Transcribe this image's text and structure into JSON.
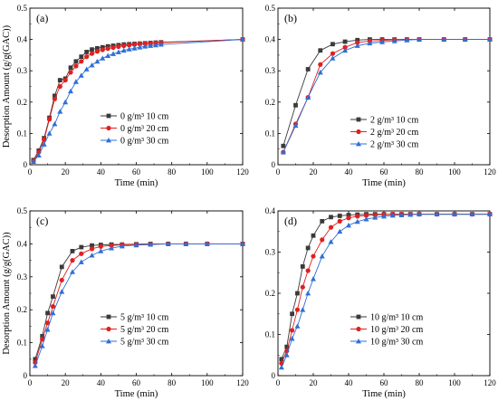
{
  "figure": {
    "colors": {
      "s10": "#3a3a3a",
      "s20": "#e02020",
      "s30": "#2f6fd6",
      "axis": "#000000"
    }
  },
  "chart_data": [
    {
      "type": "line",
      "panel_label": "(a)",
      "xlabel": "Time (min)",
      "ylabel": "Desorption Amount (g/g(GAC))",
      "xlim": [
        0,
        120
      ],
      "ylim": [
        0,
        0.5
      ],
      "xticks": [
        0,
        20,
        40,
        60,
        80,
        100,
        120
      ],
      "yticks": [
        0,
        0.1,
        0.2,
        0.3,
        0.4,
        0.5
      ],
      "ytick_labels": [
        "0",
        "0.1",
        "0.2",
        "0.3",
        "0.4",
        "0.5"
      ],
      "legend_position": "center-right",
      "series": [
        {
          "name": "0 g/m³ 10 cm",
          "marker": "square",
          "color": "#3a3a3a",
          "x": [
            2,
            5,
            8,
            11,
            14,
            17,
            20,
            23,
            26,
            29,
            32,
            35,
            38,
            41,
            44,
            47,
            50,
            53,
            56,
            59,
            62,
            65,
            68,
            71,
            74,
            120
          ],
          "y": [
            0.015,
            0.045,
            0.085,
            0.15,
            0.22,
            0.27,
            0.275,
            0.31,
            0.33,
            0.345,
            0.36,
            0.368,
            0.372,
            0.375,
            0.378,
            0.38,
            0.382,
            0.384,
            0.385,
            0.386,
            0.387,
            0.388,
            0.389,
            0.39,
            0.391,
            0.4
          ]
        },
        {
          "name": "0 g/m³ 20 cm",
          "marker": "circle",
          "color": "#e02020",
          "x": [
            2,
            5,
            8,
            11,
            14,
            17,
            20,
            23,
            26,
            29,
            32,
            35,
            38,
            41,
            44,
            47,
            50,
            53,
            56,
            59,
            62,
            65,
            68,
            71,
            74,
            120
          ],
          "y": [
            0.012,
            0.04,
            0.08,
            0.145,
            0.21,
            0.25,
            0.27,
            0.295,
            0.315,
            0.33,
            0.345,
            0.355,
            0.362,
            0.367,
            0.371,
            0.374,
            0.377,
            0.38,
            0.382,
            0.384,
            0.386,
            0.387,
            0.388,
            0.389,
            0.39,
            0.4
          ]
        },
        {
          "name": "0 g/m³ 30 cm",
          "marker": "triangle",
          "color": "#2f6fd6",
          "x": [
            2,
            5,
            8,
            11,
            14,
            17,
            20,
            23,
            26,
            29,
            32,
            35,
            38,
            41,
            44,
            47,
            50,
            53,
            56,
            59,
            62,
            65,
            68,
            71,
            74,
            120
          ],
          "y": [
            0.01,
            0.03,
            0.065,
            0.1,
            0.13,
            0.17,
            0.2,
            0.235,
            0.265,
            0.285,
            0.305,
            0.318,
            0.33,
            0.34,
            0.348,
            0.354,
            0.36,
            0.365,
            0.369,
            0.372,
            0.375,
            0.378,
            0.38,
            0.382,
            0.384,
            0.4
          ]
        }
      ]
    },
    {
      "type": "line",
      "panel_label": "(b)",
      "xlabel": "Time (min)",
      "ylabel": "",
      "xlim": [
        0,
        120
      ],
      "ylim": [
        0,
        0.5
      ],
      "xticks": [
        0,
        20,
        40,
        60,
        80,
        100,
        120
      ],
      "yticks": [
        0,
        0.1,
        0.2,
        0.3,
        0.4,
        0.5
      ],
      "ytick_labels": [
        "0",
        "0.1",
        "0.2",
        "0.3",
        "0.4",
        "0.5"
      ],
      "legend_position": "center-right",
      "series": [
        {
          "name": "2 g/m³ 10 cm",
          "marker": "square",
          "color": "#3a3a3a",
          "x": [
            3,
            10,
            17,
            24,
            31,
            38,
            45,
            52,
            59,
            66,
            73,
            80,
            94,
            106,
            120
          ],
          "y": [
            0.06,
            0.19,
            0.305,
            0.365,
            0.385,
            0.393,
            0.398,
            0.4,
            0.4,
            0.4,
            0.4,
            0.4,
            0.4,
            0.4,
            0.4
          ]
        },
        {
          "name": "2 g/m³ 20 cm",
          "marker": "circle",
          "color": "#e02020",
          "x": [
            3,
            10,
            17,
            24,
            31,
            38,
            45,
            52,
            59,
            66,
            73,
            80,
            94,
            106,
            120
          ],
          "y": [
            0.04,
            0.13,
            0.215,
            0.32,
            0.355,
            0.375,
            0.39,
            0.395,
            0.397,
            0.399,
            0.4,
            0.4,
            0.4,
            0.4,
            0.4
          ]
        },
        {
          "name": "2 g/m³ 30 cm",
          "marker": "triangle",
          "color": "#2f6fd6",
          "x": [
            3,
            10,
            17,
            24,
            31,
            38,
            45,
            52,
            59,
            66,
            73,
            80,
            94,
            106,
            120
          ],
          "y": [
            0.04,
            0.125,
            0.215,
            0.295,
            0.34,
            0.365,
            0.38,
            0.388,
            0.392,
            0.395,
            0.398,
            0.4,
            0.4,
            0.4,
            0.4
          ]
        }
      ]
    },
    {
      "type": "line",
      "panel_label": "(c)",
      "xlabel": "Time (min)",
      "ylabel": "Desorption Amount (g/g(GAC))",
      "xlim": [
        0,
        120
      ],
      "ylim": [
        0,
        0.5
      ],
      "xticks": [
        0,
        20,
        40,
        60,
        80,
        100,
        120
      ],
      "yticks": [
        0,
        0.1,
        0.2,
        0.3,
        0.4,
        0.5
      ],
      "ytick_labels": [
        "0",
        "0.1",
        "0.2",
        "0.3",
        "0.4",
        "0.5"
      ],
      "legend_position": "center-right",
      "series": [
        {
          "name": "5 g/m³ 10 cm",
          "marker": "square",
          "color": "#3a3a3a",
          "x": [
            3,
            7,
            10,
            13,
            18,
            24,
            29,
            35,
            40,
            46,
            52,
            60,
            68,
            78,
            88,
            100,
            120
          ],
          "y": [
            0.05,
            0.12,
            0.19,
            0.24,
            0.33,
            0.378,
            0.39,
            0.395,
            0.397,
            0.398,
            0.398,
            0.399,
            0.4,
            0.4,
            0.4,
            0.4,
            0.4
          ]
        },
        {
          "name": "5 g/m³ 20 cm",
          "marker": "circle",
          "color": "#e02020",
          "x": [
            3,
            7,
            10,
            13,
            18,
            24,
            29,
            35,
            40,
            46,
            52,
            60,
            68,
            78,
            88,
            100,
            120
          ],
          "y": [
            0.04,
            0.11,
            0.16,
            0.21,
            0.29,
            0.35,
            0.37,
            0.385,
            0.392,
            0.395,
            0.397,
            0.398,
            0.399,
            0.4,
            0.4,
            0.4,
            0.4
          ]
        },
        {
          "name": "5 g/m³ 30 cm",
          "marker": "triangle",
          "color": "#2f6fd6",
          "x": [
            3,
            7,
            10,
            13,
            18,
            24,
            29,
            35,
            40,
            46,
            52,
            60,
            68,
            78,
            88,
            100,
            120
          ],
          "y": [
            0.03,
            0.09,
            0.14,
            0.19,
            0.255,
            0.315,
            0.345,
            0.365,
            0.378,
            0.387,
            0.393,
            0.396,
            0.398,
            0.4,
            0.4,
            0.4,
            0.4
          ]
        }
      ]
    },
    {
      "type": "line",
      "panel_label": "(d)",
      "xlabel": "Time (min)",
      "ylabel": "",
      "xlim": [
        0,
        120
      ],
      "ylim": [
        0,
        0.4
      ],
      "xticks": [
        0,
        20,
        40,
        60,
        80,
        100,
        120
      ],
      "yticks": [
        0,
        0.1,
        0.2,
        0.3,
        0.4
      ],
      "ytick_labels": [
        "0",
        "0.1",
        "0.2",
        "0.3",
        "0.4"
      ],
      "legend_position": "center-right",
      "series": [
        {
          "name": "10 g/m³ 10 cm",
          "marker": "square",
          "color": "#3a3a3a",
          "x": [
            2,
            5,
            8,
            11,
            14,
            17,
            20,
            25,
            30,
            35,
            40,
            45,
            50,
            55,
            60,
            65,
            70,
            75,
            80,
            90,
            100,
            110,
            120
          ],
          "y": [
            0.04,
            0.07,
            0.15,
            0.2,
            0.265,
            0.31,
            0.34,
            0.375,
            0.385,
            0.388,
            0.39,
            0.391,
            0.392,
            0.392,
            0.392,
            0.392,
            0.392,
            0.392,
            0.392,
            0.392,
            0.392,
            0.392,
            0.392
          ]
        },
        {
          "name": "10 g/m³ 20 cm",
          "marker": "circle",
          "color": "#e02020",
          "x": [
            2,
            5,
            8,
            11,
            14,
            17,
            20,
            25,
            30,
            35,
            40,
            45,
            50,
            55,
            60,
            65,
            70,
            75,
            80,
            90,
            100,
            110,
            120
          ],
          "y": [
            0.03,
            0.06,
            0.11,
            0.16,
            0.215,
            0.255,
            0.29,
            0.33,
            0.36,
            0.375,
            0.383,
            0.387,
            0.389,
            0.39,
            0.391,
            0.392,
            0.392,
            0.392,
            0.392,
            0.392,
            0.392,
            0.392,
            0.392
          ]
        },
        {
          "name": "10 g/m³ 30 cm",
          "marker": "triangle",
          "color": "#2f6fd6",
          "x": [
            2,
            5,
            8,
            11,
            14,
            17,
            20,
            25,
            30,
            35,
            40,
            45,
            50,
            55,
            60,
            65,
            70,
            75,
            80,
            90,
            100,
            110,
            120
          ],
          "y": [
            0.02,
            0.05,
            0.09,
            0.12,
            0.16,
            0.2,
            0.235,
            0.29,
            0.325,
            0.35,
            0.365,
            0.374,
            0.38,
            0.384,
            0.387,
            0.389,
            0.39,
            0.391,
            0.392,
            0.392,
            0.392,
            0.392,
            0.392
          ]
        }
      ]
    }
  ]
}
